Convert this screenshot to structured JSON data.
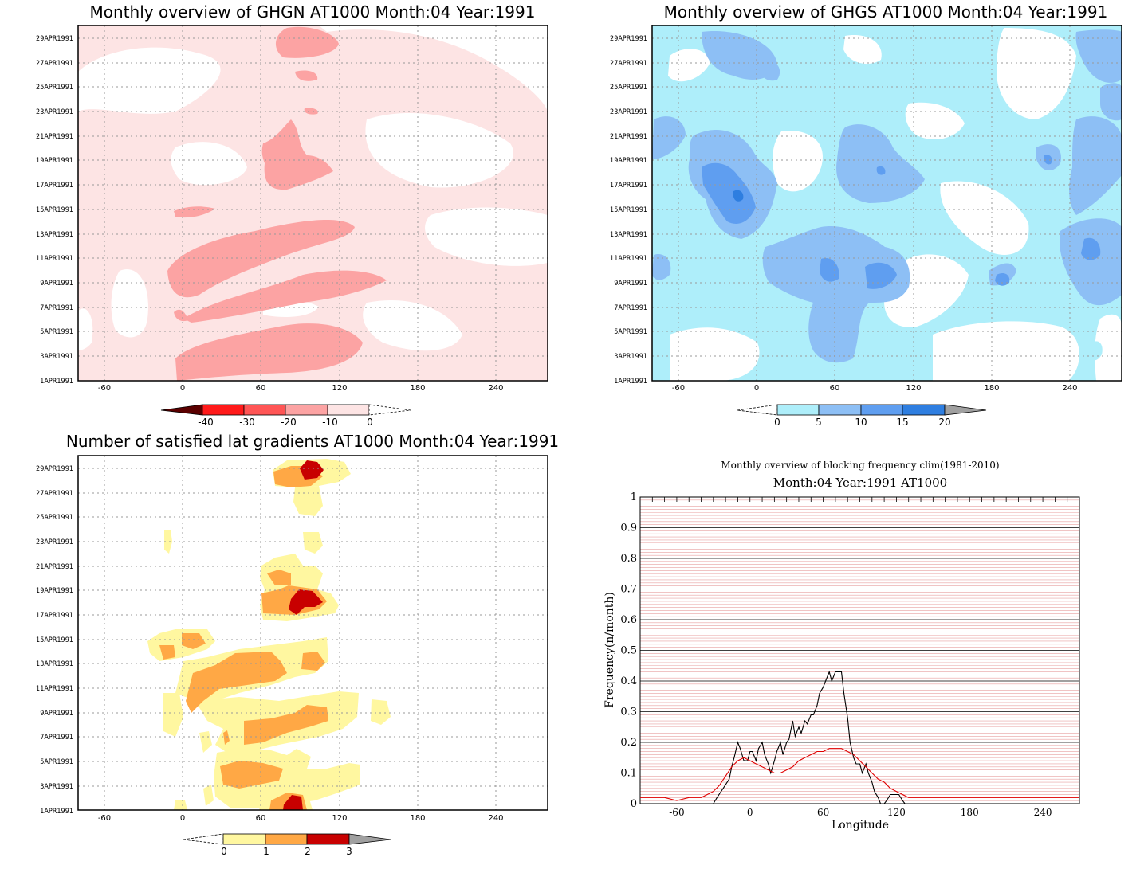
{
  "chart_data": [
    {
      "type": "heatmap",
      "title": "Monthly overview of GHGN AT1000 Month:04 Year:1991",
      "x_ticks": [
        "-60",
        "0",
        "60",
        "120",
        "180",
        "240"
      ],
      "y_ticks": [
        "1APR1991",
        "3APR1991",
        "5APR1991",
        "7APR1991",
        "9APR1991",
        "11APR1991",
        "13APR1991",
        "15APR1991",
        "17APR1991",
        "19APR1991",
        "21APR1991",
        "23APR1991",
        "25APR1991",
        "27APR1991",
        "29APR1991"
      ],
      "xlim": [
        -80,
        280
      ],
      "ylim": [
        1,
        30
      ],
      "colorbar": {
        "ticks": [
          "-40",
          "-30",
          "-20",
          "-10",
          "0"
        ],
        "colors": [
          "#5b0000",
          "#ff1a1a",
          "#ff5555",
          "#fca3a3",
          "#fde4e4"
        ],
        "extend": "both"
      },
      "regions": [
        {
          "level": "0 to -10",
          "color": "#fde4e4",
          "desc": "light pink background over most of domain"
        },
        {
          "level": "-10 to -20",
          "color": "#fca3a3",
          "desc": "bands between 0 and 120 longitude, days 1-29"
        }
      ]
    },
    {
      "type": "heatmap",
      "title": "Monthly overview of GHGS AT1000 Month:04 Year:1991",
      "x_ticks": [
        "-60",
        "0",
        "60",
        "120",
        "180",
        "240"
      ],
      "y_ticks": [
        "1APR1991",
        "3APR1991",
        "5APR1991",
        "7APR1991",
        "9APR1991",
        "11APR1991",
        "13APR1991",
        "15APR1991",
        "17APR1991",
        "19APR1991",
        "21APR1991",
        "23APR1991",
        "25APR1991",
        "27APR1991",
        "29APR1991"
      ],
      "xlim": [
        -80,
        280
      ],
      "ylim": [
        1,
        30
      ],
      "colorbar": {
        "ticks": [
          "0",
          "5",
          "10",
          "15",
          "20"
        ],
        "colors": [
          "#aeeefa",
          "#8dbff5",
          "#5f9ef0",
          "#2e7ee0",
          "#1a5fc4"
        ],
        "extend": "both"
      }
    },
    {
      "type": "heatmap",
      "title": "Number of satisfied lat gradients AT1000 Month:04 Year:1991",
      "x_ticks": [
        "-60",
        "0",
        "60",
        "120",
        "180",
        "240"
      ],
      "y_ticks": [
        "1APR1991",
        "3APR1991",
        "5APR1991",
        "7APR1991",
        "9APR1991",
        "11APR1991",
        "13APR1991",
        "15APR1991",
        "17APR1991",
        "19APR1991",
        "21APR1991",
        "23APR1991",
        "25APR1991",
        "27APR1991",
        "29APR1991"
      ],
      "xlim": [
        -80,
        280
      ],
      "ylim": [
        1,
        30
      ],
      "colorbar": {
        "ticks": [
          "0",
          "1",
          "2",
          "3"
        ],
        "colors": [
          "#fff7a0",
          "#ffb44a",
          "#f77d1a",
          "#c80000"
        ],
        "extend": "both"
      }
    },
    {
      "type": "line",
      "title": "Monthly overview of blocking frequency clim(1981-2010)",
      "subtitle": "Month:04 Year:1991  AT1000",
      "xlabel": "Longitude",
      "ylabel": "Frequency(n/month)",
      "xlim": [
        -90,
        270
      ],
      "ylim": [
        0,
        1
      ],
      "x_ticks": [
        "-60",
        "0",
        "60",
        "120",
        "180",
        "240"
      ],
      "y_ticks": [
        "0",
        "0.1",
        "0.2",
        "0.3",
        "0.4",
        "0.5",
        "0.6",
        "0.7",
        "0.8",
        "0.9",
        "1"
      ],
      "series": [
        {
          "color": "#000000",
          "x": [
            -90,
            -30,
            -27,
            -22,
            -17,
            -15,
            -13,
            -10,
            -8,
            -5,
            -2,
            0,
            2,
            5,
            7,
            10,
            12,
            15,
            17,
            20,
            22,
            25,
            27,
            30,
            32,
            35,
            37,
            40,
            42,
            45,
            47,
            50,
            52,
            55,
            57,
            60,
            62,
            65,
            67,
            70,
            72,
            75,
            77,
            80,
            82,
            85,
            87,
            90,
            92,
            95,
            97,
            100,
            102,
            105,
            107,
            110,
            112,
            115,
            117,
            120,
            122,
            125,
            127,
            130,
            135,
            140,
            145,
            150,
            155,
            160,
            270
          ],
          "y": [
            0,
            0,
            0.02,
            0.05,
            0.08,
            0.12,
            0.15,
            0.2,
            0.18,
            0.14,
            0.14,
            0.17,
            0.17,
            0.14,
            0.18,
            0.2,
            0.16,
            0.13,
            0.1,
            0.14,
            0.17,
            0.2,
            0.16,
            0.2,
            0.21,
            0.27,
            0.22,
            0.25,
            0.23,
            0.27,
            0.26,
            0.29,
            0.29,
            0.32,
            0.36,
            0.38,
            0.4,
            0.43,
            0.4,
            0.43,
            0.43,
            0.43,
            0.36,
            0.28,
            0.2,
            0.15,
            0.13,
            0.13,
            0.1,
            0.13,
            0.1,
            0.07,
            0.04,
            0.02,
            0,
            0,
            0.01,
            0.03,
            0.03,
            0.03,
            0.03,
            0.01,
            0,
            0,
            0,
            0,
            0,
            0,
            0,
            0,
            0
          ]
        },
        {
          "color": "#e00000",
          "x": [
            -90,
            -80,
            -70,
            -60,
            -50,
            -40,
            -35,
            -30,
            -25,
            -20,
            -15,
            -10,
            -5,
            0,
            5,
            10,
            15,
            20,
            25,
            30,
            35,
            40,
            45,
            50,
            55,
            60,
            65,
            70,
            75,
            80,
            85,
            90,
            95,
            100,
            105,
            110,
            115,
            120,
            125,
            130,
            135,
            140,
            150,
            160,
            170,
            180,
            190,
            200,
            210,
            220,
            230,
            240,
            250,
            260,
            270
          ],
          "y": [
            0.02,
            0.02,
            0.02,
            0.01,
            0.02,
            0.02,
            0.03,
            0.04,
            0.06,
            0.09,
            0.12,
            0.14,
            0.15,
            0.14,
            0.13,
            0.12,
            0.11,
            0.1,
            0.1,
            0.11,
            0.12,
            0.14,
            0.15,
            0.16,
            0.17,
            0.17,
            0.18,
            0.18,
            0.18,
            0.17,
            0.16,
            0.14,
            0.12,
            0.1,
            0.08,
            0.07,
            0.05,
            0.04,
            0.03,
            0.02,
            0.02,
            0.02,
            0.02,
            0.02,
            0.02,
            0.02,
            0.02,
            0.02,
            0.02,
            0.02,
            0.02,
            0.02,
            0.02,
            0.02,
            0.02
          ]
        }
      ]
    }
  ]
}
